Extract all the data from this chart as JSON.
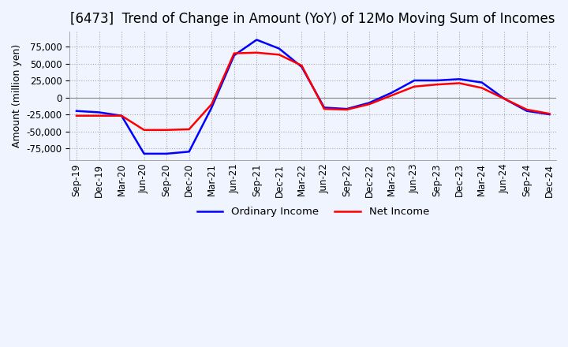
{
  "title": "[6473]  Trend of Change in Amount (YoY) of 12Mo Moving Sum of Incomes",
  "ylabel": "Amount (million yen)",
  "yticks": [
    75000,
    50000,
    25000,
    0,
    -25000,
    -50000,
    -75000
  ],
  "ylim": [
    -92000,
    97000
  ],
  "x_labels": [
    "Sep-19",
    "Dec-19",
    "Mar-20",
    "Jun-20",
    "Sep-20",
    "Dec-20",
    "Mar-21",
    "Jun-21",
    "Sep-21",
    "Dec-21",
    "Mar-22",
    "Jun-22",
    "Sep-22",
    "Dec-22",
    "Mar-23",
    "Jun-23",
    "Sep-23",
    "Dec-23",
    "Mar-24",
    "Jun-24",
    "Sep-24",
    "Dec-24"
  ],
  "ordinary_income": [
    -20000,
    -22000,
    -27000,
    -83000,
    -83000,
    -80000,
    -15000,
    62000,
    85000,
    72000,
    45000,
    -15000,
    -17000,
    -8000,
    7000,
    25000,
    25000,
    27000,
    22000,
    -2000,
    -20000,
    -25000
  ],
  "net_income": [
    -27000,
    -27000,
    -27000,
    -48000,
    -48000,
    -47000,
    -10000,
    65000,
    66000,
    63000,
    47000,
    -17000,
    -18000,
    -10000,
    3000,
    16000,
    19000,
    21000,
    14000,
    -2000,
    -18000,
    -24000
  ],
  "ordinary_color": "#0000FF",
  "net_color": "#FF0000",
  "grid_color": "#AAAAAA",
  "bg_color": "#F0F4FF",
  "title_fontsize": 12,
  "label_fontsize": 9,
  "tick_fontsize": 8.5
}
